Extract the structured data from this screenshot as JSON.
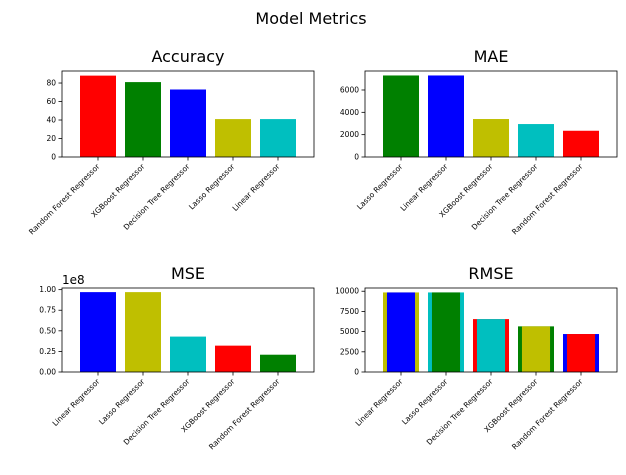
{
  "title": "Model Metrics",
  "chart_data": [
    {
      "type": "bar",
      "title": "Accuracy",
      "categories": [
        "Random Forest Regressor",
        "XGBoost Regressor",
        "Decision Tree Regressor",
        "Lasso Regressor",
        "Linear Regressor"
      ],
      "values": [
        88,
        81,
        73,
        41,
        41
      ],
      "bar_colors": [
        "#ff0000",
        "#008000",
        "#0000ff",
        "#bfbf00",
        "#00bfbf"
      ],
      "ylim": [
        0,
        93
      ],
      "yticks": [
        0,
        20,
        40,
        60,
        80
      ],
      "ytick_labels": [
        "0",
        "20",
        "40",
        "60",
        "80"
      ],
      "xlabel": "",
      "ylabel": ""
    },
    {
      "type": "bar",
      "title": "MAE",
      "categories": [
        "Lasso Regressor",
        "Linear Regressor",
        "XGBoost Regressor",
        "Decision Tree Regressor",
        "Random Forest Regressor"
      ],
      "values": [
        7300,
        7300,
        3400,
        2950,
        2350
      ],
      "bar_colors": [
        "#008000",
        "#0000ff",
        "#bfbf00",
        "#00bfbf",
        "#ff0000"
      ],
      "ylim": [
        0,
        7700
      ],
      "yticks": [
        0,
        2000,
        4000,
        6000
      ],
      "ytick_labels": [
        "0",
        "2000",
        "4000",
        "6000"
      ],
      "xlabel": "",
      "ylabel": ""
    },
    {
      "type": "bar",
      "title": "MSE",
      "scale_label": "1e8",
      "categories": [
        "Linear Regressor",
        "Lasso Regressor",
        "Decision Tree Regressor",
        "XGBoost Regressor",
        "Random Forest Regressor"
      ],
      "values": [
        97000000,
        97000000,
        43000000,
        32000000,
        21000000
      ],
      "bar_colors": [
        "#0000ff",
        "#bfbf00",
        "#00bfbf",
        "#ff0000",
        "#008000"
      ],
      "ylim": [
        0,
        102000000
      ],
      "yticks": [
        0,
        25000000,
        50000000,
        75000000,
        100000000
      ],
      "ytick_labels": [
        "0.00",
        "0.25",
        "0.50",
        "0.75",
        "1.00"
      ],
      "xlabel": "",
      "ylabel": ""
    },
    {
      "type": "bar",
      "title": "RMSE",
      "categories": [
        "Linear Regressor",
        "Lasso Regressor",
        "Decision Tree Regressor",
        "XGBoost Regressor",
        "Random Forest Regressor"
      ],
      "values": [
        9850,
        9850,
        6550,
        5650,
        4700
      ],
      "bar_colors": [
        "#bfbf00",
        "#00bfbf",
        "#ff0000",
        "#008000",
        "#0000ff"
      ],
      "overlay_colors": [
        "#0000ff",
        "#008000",
        "#00bfbf",
        "#bfbf00",
        "#ff0000"
      ],
      "ylim": [
        0,
        10400
      ],
      "yticks": [
        0,
        2500,
        5000,
        7500,
        10000
      ],
      "ytick_labels": [
        "0",
        "2500",
        "5000",
        "7500",
        "10000"
      ],
      "xlabel": "",
      "ylabel": ""
    }
  ]
}
